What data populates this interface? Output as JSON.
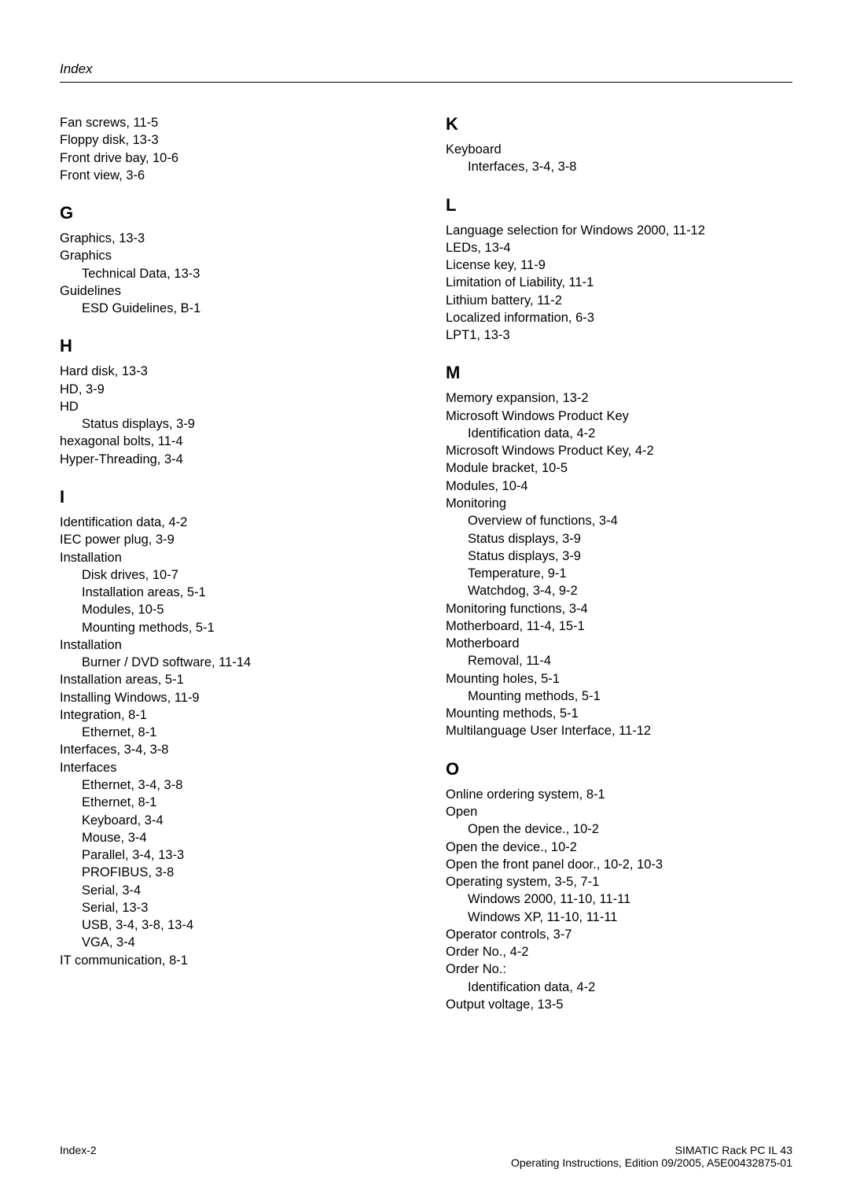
{
  "page": {
    "header": "Index",
    "footer_left": "Index-2",
    "footer_right_line1": "SIMATIC Rack PC IL 43",
    "footer_right_line2": "Operating Instructions, Edition 09/2005, A5E00432875-01"
  },
  "left_column": {
    "top_entries": [
      "Fan screws, 11-5",
      "Floppy disk, 13-3",
      "Front drive bay, 10-6",
      "Front view, 3-6"
    ],
    "sections": [
      {
        "letter": "G",
        "lines": [
          {
            "t": "Graphics, 13-3"
          },
          {
            "t": "Graphics"
          },
          {
            "t": "Technical Data, 13-3",
            "sub": true
          },
          {
            "t": "Guidelines"
          },
          {
            "t": "ESD Guidelines, B-1",
            "sub": true
          }
        ]
      },
      {
        "letter": "H",
        "lines": [
          {
            "t": "Hard disk, 13-3"
          },
          {
            "t": "HD, 3-9"
          },
          {
            "t": "HD"
          },
          {
            "t": "Status displays, 3-9",
            "sub": true
          },
          {
            "t": "hexagonal bolts, 11-4"
          },
          {
            "t": "Hyper-Threading, 3-4"
          }
        ]
      },
      {
        "letter": "I",
        "lines": [
          {
            "t": "Identification data, 4-2"
          },
          {
            "t": "IEC power plug, 3-9"
          },
          {
            "t": "Installation"
          },
          {
            "t": "Disk drives, 10-7",
            "sub": true
          },
          {
            "t": "Installation areas, 5-1",
            "sub": true
          },
          {
            "t": "Modules, 10-5",
            "sub": true
          },
          {
            "t": "Mounting methods, 5-1",
            "sub": true
          },
          {
            "t": "Installation"
          },
          {
            "t": "Burner / DVD software, 11-14",
            "sub": true
          },
          {
            "t": "Installation areas, 5-1"
          },
          {
            "t": "Installing Windows, 11-9"
          },
          {
            "t": "Integration, 8-1"
          },
          {
            "t": "Ethernet, 8-1",
            "sub": true
          },
          {
            "t": "Interfaces, 3-4, 3-8"
          },
          {
            "t": "Interfaces"
          },
          {
            "t": "Ethernet, 3-4, 3-8",
            "sub": true
          },
          {
            "t": "Ethernet, 8-1",
            "sub": true
          },
          {
            "t": "Keyboard, 3-4",
            "sub": true
          },
          {
            "t": "Mouse, 3-4",
            "sub": true
          },
          {
            "t": "Parallel, 3-4, 13-3",
            "sub": true
          },
          {
            "t": "PROFIBUS, 3-8",
            "sub": true
          },
          {
            "t": "Serial, 3-4",
            "sub": true
          },
          {
            "t": "Serial, 13-3",
            "sub": true
          },
          {
            "t": "USB, 3-4, 3-8, 13-4",
            "sub": true
          },
          {
            "t": "VGA, 3-4",
            "sub": true
          },
          {
            "t": "IT communication, 8-1"
          }
        ]
      }
    ]
  },
  "right_column": {
    "sections": [
      {
        "letter": "K",
        "lines": [
          {
            "t": "Keyboard"
          },
          {
            "t": "Interfaces, 3-4, 3-8",
            "sub": true
          }
        ]
      },
      {
        "letter": "L",
        "lines": [
          {
            "t": "Language selection for Windows 2000, 11-12"
          },
          {
            "t": "LEDs, 13-4"
          },
          {
            "t": "License key, 11-9"
          },
          {
            "t": "Limitation of Liability, 11-1"
          },
          {
            "t": "Lithium battery, 11-2"
          },
          {
            "t": "Localized information, 6-3"
          },
          {
            "t": "LPT1, 13-3"
          }
        ]
      },
      {
        "letter": "M",
        "lines": [
          {
            "t": "Memory expansion, 13-2"
          },
          {
            "t": "Microsoft Windows Product Key"
          },
          {
            "t": "Identification data, 4-2",
            "sub": true
          },
          {
            "t": "Microsoft Windows Product Key, 4-2"
          },
          {
            "t": "Module bracket, 10-5"
          },
          {
            "t": "Modules, 10-4"
          },
          {
            "t": "Monitoring"
          },
          {
            "t": "Overview of functions, 3-4",
            "sub": true
          },
          {
            "t": "Status displays, 3-9",
            "sub": true
          },
          {
            "t": "Status displays, 3-9",
            "sub": true
          },
          {
            "t": "Temperature, 9-1",
            "sub": true
          },
          {
            "t": "Watchdog, 3-4, 9-2",
            "sub": true
          },
          {
            "t": "Monitoring functions, 3-4"
          },
          {
            "t": "Motherboard, 11-4, 15-1"
          },
          {
            "t": "Motherboard"
          },
          {
            "t": "Removal, 11-4",
            "sub": true
          },
          {
            "t": "Mounting holes, 5-1"
          },
          {
            "t": "Mounting methods, 5-1",
            "sub": true
          },
          {
            "t": "Mounting methods, 5-1"
          },
          {
            "t": "Multilanguage User Interface, 11-12"
          }
        ]
      },
      {
        "letter": "O",
        "lines": [
          {
            "t": "Online ordering system, 8-1"
          },
          {
            "t": "Open"
          },
          {
            "t": "Open the device., 10-2",
            "sub": true
          },
          {
            "t": "Open the device., 10-2"
          },
          {
            "t": "Open the front panel door., 10-2, 10-3"
          },
          {
            "t": "Operating system, 3-5, 7-1"
          },
          {
            "t": "Windows 2000, 11-10, 11-11",
            "sub": true
          },
          {
            "t": "Windows XP, 11-10, 11-11",
            "sub": true
          },
          {
            "t": "Operator controls, 3-7"
          },
          {
            "t": "Order No., 4-2"
          },
          {
            "t": "Order No.:"
          },
          {
            "t": "Identification data, 4-2",
            "sub": true
          },
          {
            "t": "Output voltage, 13-5"
          }
        ]
      }
    ]
  }
}
